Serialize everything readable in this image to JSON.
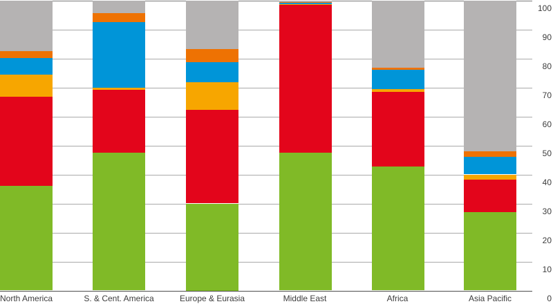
{
  "chart_data": {
    "type": "bar",
    "stacked": true,
    "title": "",
    "xlabel": "",
    "ylabel": "",
    "ylim": [
      0,
      100
    ],
    "yticks": [
      0,
      10,
      20,
      30,
      40,
      50,
      60,
      70,
      80,
      90,
      100
    ],
    "y_axis_position": "right",
    "grid": true,
    "legend": null,
    "categories": [
      "North America",
      "S. & Cent. America",
      "Europe & Eurasia",
      "Middle East",
      "Africa",
      "Asia Pacific"
    ],
    "series": [
      {
        "name": "green",
        "color": "#80ba27",
        "values": [
          36.1,
          47.6,
          30.0,
          47.6,
          42.7,
          27.0
        ]
      },
      {
        "name": "red",
        "color": "#e3051b",
        "values": [
          30.7,
          21.6,
          32.3,
          50.9,
          25.8,
          11.1
        ]
      },
      {
        "name": "yellow",
        "color": "#f7a600",
        "values": [
          7.6,
          0.7,
          9.5,
          0.3,
          1.0,
          1.9
        ]
      },
      {
        "name": "blue",
        "color": "#0095d8",
        "values": [
          5.8,
          22.5,
          6.9,
          0.4,
          6.5,
          6.1
        ]
      },
      {
        "name": "orange",
        "color": "#ee7203",
        "values": [
          2.2,
          3.1,
          4.4,
          0.2,
          0.7,
          1.9
        ]
      },
      {
        "name": "gray",
        "color": "#b5b3b3",
        "values": [
          17.6,
          4.5,
          16.9,
          0.6,
          23.3,
          52.0
        ]
      }
    ]
  },
  "axis": {
    "tick_labels": [
      "0",
      "10",
      "20",
      "30",
      "40",
      "50",
      "60",
      "70",
      "80",
      "90",
      "100"
    ]
  }
}
